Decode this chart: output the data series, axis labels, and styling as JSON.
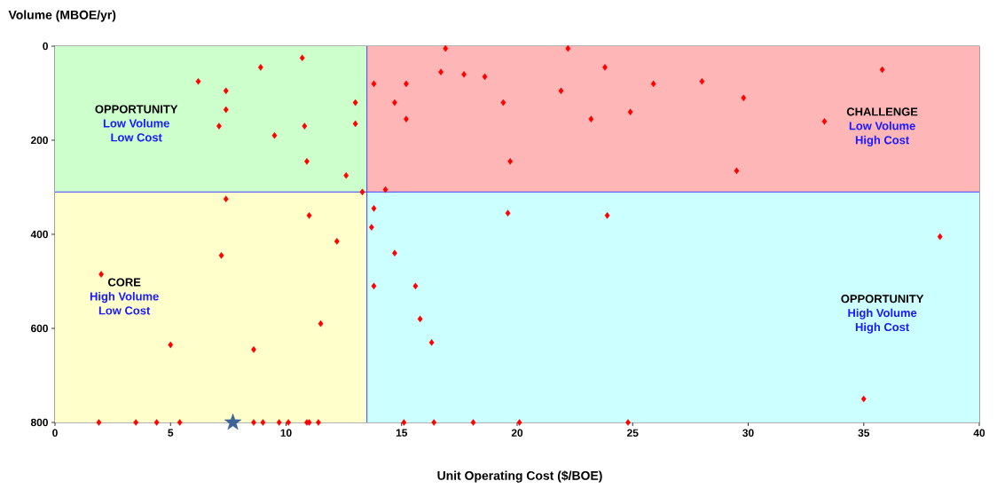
{
  "chart_data": {
    "type": "scatter",
    "xlabel": "Unit Operating Cost ($/BOE)",
    "ylabel": "Volume (MBOE/yr)",
    "xlim": [
      0,
      40
    ],
    "ylim": [
      800,
      0
    ],
    "xticks": [
      0,
      5,
      10,
      15,
      20,
      25,
      30,
      35,
      40
    ],
    "yticks": [
      0,
      200,
      400,
      600,
      800
    ],
    "grid": false,
    "ref_lines": [
      {
        "axis": "x",
        "value": 13.5,
        "color": "#4040ff"
      },
      {
        "axis": "y",
        "value": 310,
        "color": "#4040ff"
      }
    ],
    "bands": [
      {
        "axis": "y",
        "from": 0,
        "to": 310,
        "color": "#ccffcc"
      },
      {
        "axis": "y",
        "from": 0,
        "to": 310,
        "color": "#ffb6b6"
      },
      {
        "axis": "y",
        "from": 310,
        "to": 800,
        "color": "#ffffcc"
      },
      {
        "axis": "y",
        "from": 310,
        "to": 800,
        "color": "#ccffff"
      }
    ],
    "annotations": [
      "OPPORTUNITY",
      "Low Volume",
      "Low Cost",
      "CHALLENGE",
      "Low Volume",
      "High Cost",
      "CORE",
      "High Volume",
      "Low Cost",
      "OPPORTUNITY",
      "High Volume",
      "High Cost"
    ],
    "series": [
      {
        "color": "#ff0000",
        "marker": "diamond",
        "x": [
          6.2,
          7.4,
          7.4,
          7.1,
          8.9,
          10.7,
          9.5,
          10.8,
          13.0,
          13.0,
          10.9,
          12.6,
          13.3,
          7.4,
          11.0,
          12.2,
          13.8,
          13.7,
          7.2,
          13.8,
          16.9,
          22.2,
          16.7,
          17.7,
          18.6,
          15.2,
          23.8,
          21.9,
          25.9,
          14.7,
          19.4,
          15.2,
          23.2,
          24.9,
          19.7,
          14.3,
          19.6,
          23.9,
          14.7,
          28.0,
          29.8,
          35.8,
          33.3,
          29.5,
          38.3,
          2.0,
          13.8,
          11.5,
          5.0,
          8.6,
          1.9,
          3.5,
          4.4,
          5.4,
          8.6,
          9.0,
          9.7,
          10.1,
          10.9,
          11.0,
          11.4,
          15.1,
          16.4,
          18.1,
          20.1,
          24.8,
          15.6,
          15.8,
          16.3,
          35.0
        ],
        "values": [
          75,
          95,
          135,
          170,
          45,
          25,
          190,
          170,
          120,
          165,
          245,
          275,
          310,
          325,
          360,
          415,
          345,
          385,
          445,
          80,
          5,
          5,
          55,
          60,
          65,
          80,
          45,
          95,
          80,
          120,
          120,
          155,
          155,
          140,
          245,
          305,
          355,
          360,
          440,
          75,
          110,
          50,
          160,
          265,
          405,
          485,
          510,
          590,
          635,
          645,
          800,
          800,
          800,
          800,
          800,
          800,
          800,
          800,
          800,
          800,
          800,
          800,
          800,
          800,
          800,
          800,
          510,
          580,
          630,
          750
        ]
      },
      {
        "color": "#3c6496",
        "marker": "star",
        "x": [
          7.7
        ],
        "values": [
          800
        ]
      }
    ]
  }
}
